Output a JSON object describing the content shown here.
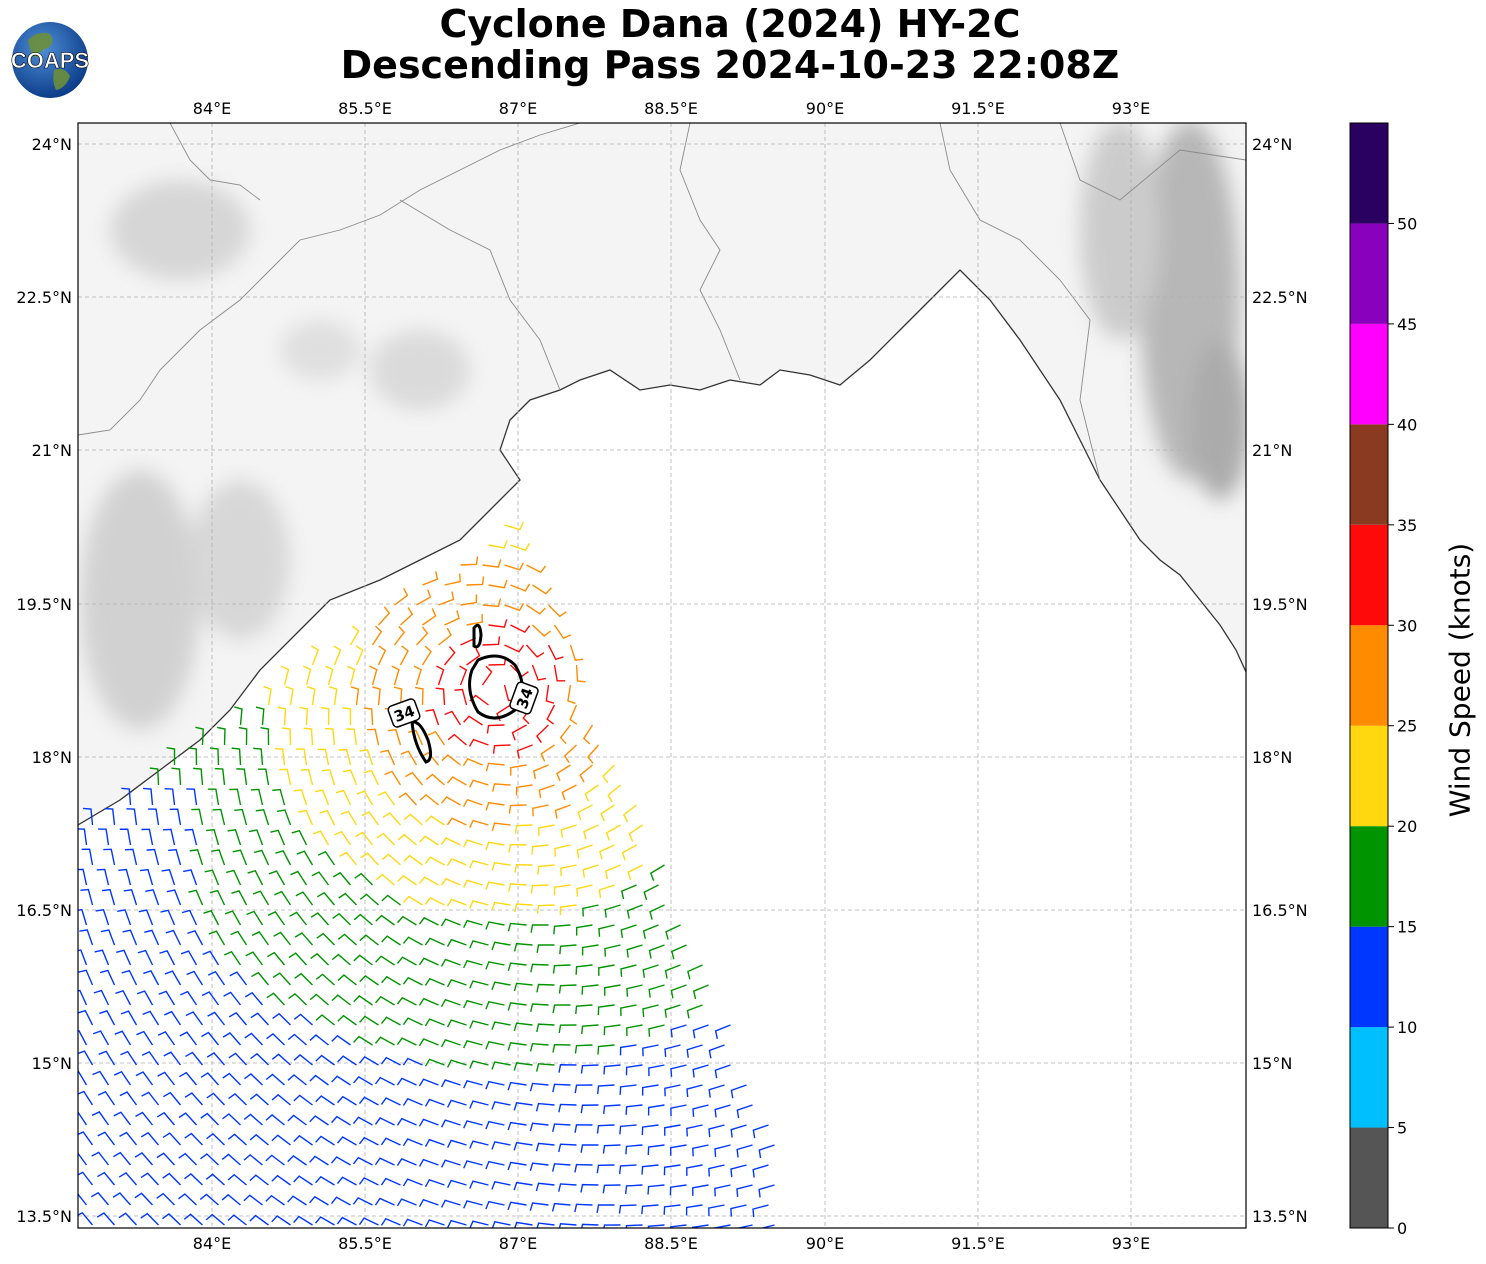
{
  "title": {
    "line1": "Cyclone Dana (2024) HY-2C",
    "line2": "Descending Pass 2024-10-23 22:08Z"
  },
  "logo": {
    "text": "COAPS"
  },
  "map": {
    "lon_ticks": [
      "84°E",
      "85.5°E",
      "87°E",
      "88.5°E",
      "90°E",
      "91.5°E",
      "93°E"
    ],
    "lat_ticks": [
      "24°N",
      "22.5°N",
      "21°N",
      "19.5°N",
      "18°N",
      "16.5°N",
      "15°N",
      "13.5°N"
    ],
    "contour_labels": [
      "34",
      "34"
    ]
  },
  "colorbar": {
    "label": "Wind Speed (knots)",
    "ticks": [
      "0",
      "5",
      "10",
      "15",
      "20",
      "25",
      "30",
      "35",
      "40",
      "45",
      "50"
    ],
    "colors": [
      "#555555",
      "#00bfff",
      "#0037ff",
      "#009400",
      "#ffd80f",
      "#ff8c00",
      "#ff0a0a",
      "#8b3a22",
      "#ff00ff",
      "#8900bd",
      "#2a0060"
    ]
  },
  "colors": {
    "land": "#f3f3f3",
    "terrain": "#c8c8c8",
    "coast": "#333333",
    "grid": "#b0b0b0"
  }
}
